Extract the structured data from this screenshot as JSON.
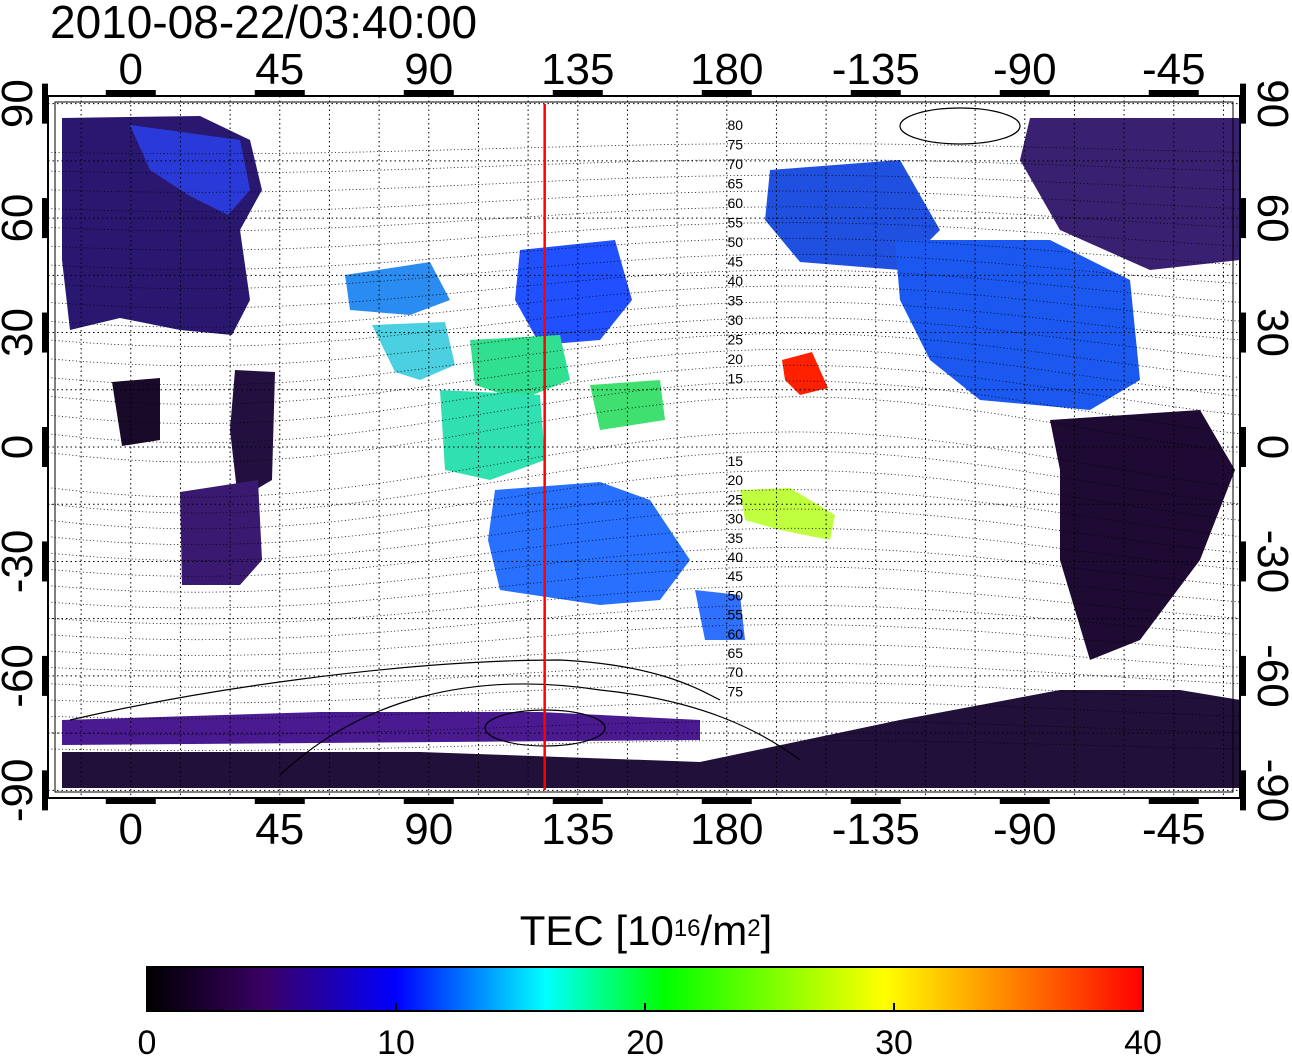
{
  "title": "2010-08-22/03:40:00",
  "map": {
    "x_ticks": [
      "0",
      "45",
      "90",
      "135",
      "180",
      "-135",
      "-90",
      "-45"
    ],
    "x_tick_lons": [
      0,
      45,
      90,
      135,
      180,
      225,
      270,
      315
    ],
    "y_ticks": [
      "90",
      "60",
      "30",
      "0",
      "-30",
      "-60",
      "-90"
    ],
    "y_tick_lats": [
      90,
      60,
      30,
      0,
      -30,
      -60,
      -90
    ],
    "lon_range": [
      -25,
      335
    ],
    "lat_range": [
      -92,
      92
    ],
    "grid": "dotted",
    "marker_line": {
      "lon": 125,
      "color": "#ff0000"
    },
    "contour_labels_north": [
      "80",
      "75",
      "70",
      "65",
      "60",
      "55",
      "50",
      "45",
      "40",
      "35",
      "30",
      "25",
      "20",
      "15"
    ],
    "contour_labels_south": [
      "15",
      "20",
      "25",
      "30",
      "35",
      "40",
      "45",
      "50",
      "55",
      "60",
      "65",
      "70",
      "75"
    ]
  },
  "colorbar": {
    "title_prefix": "TEC  [10",
    "title_exp1": "16",
    "title_mid": "/m",
    "title_exp2": "2",
    "title_suffix": "]",
    "min": 0,
    "max": 40,
    "ticks": [
      "0",
      "10",
      "20",
      "30",
      "40"
    ],
    "colors": [
      "#000000",
      "#3a0066",
      "#0000ff",
      "#00ffff",
      "#00ff00",
      "#ffff00",
      "#ff8000",
      "#ff0000"
    ]
  }
}
